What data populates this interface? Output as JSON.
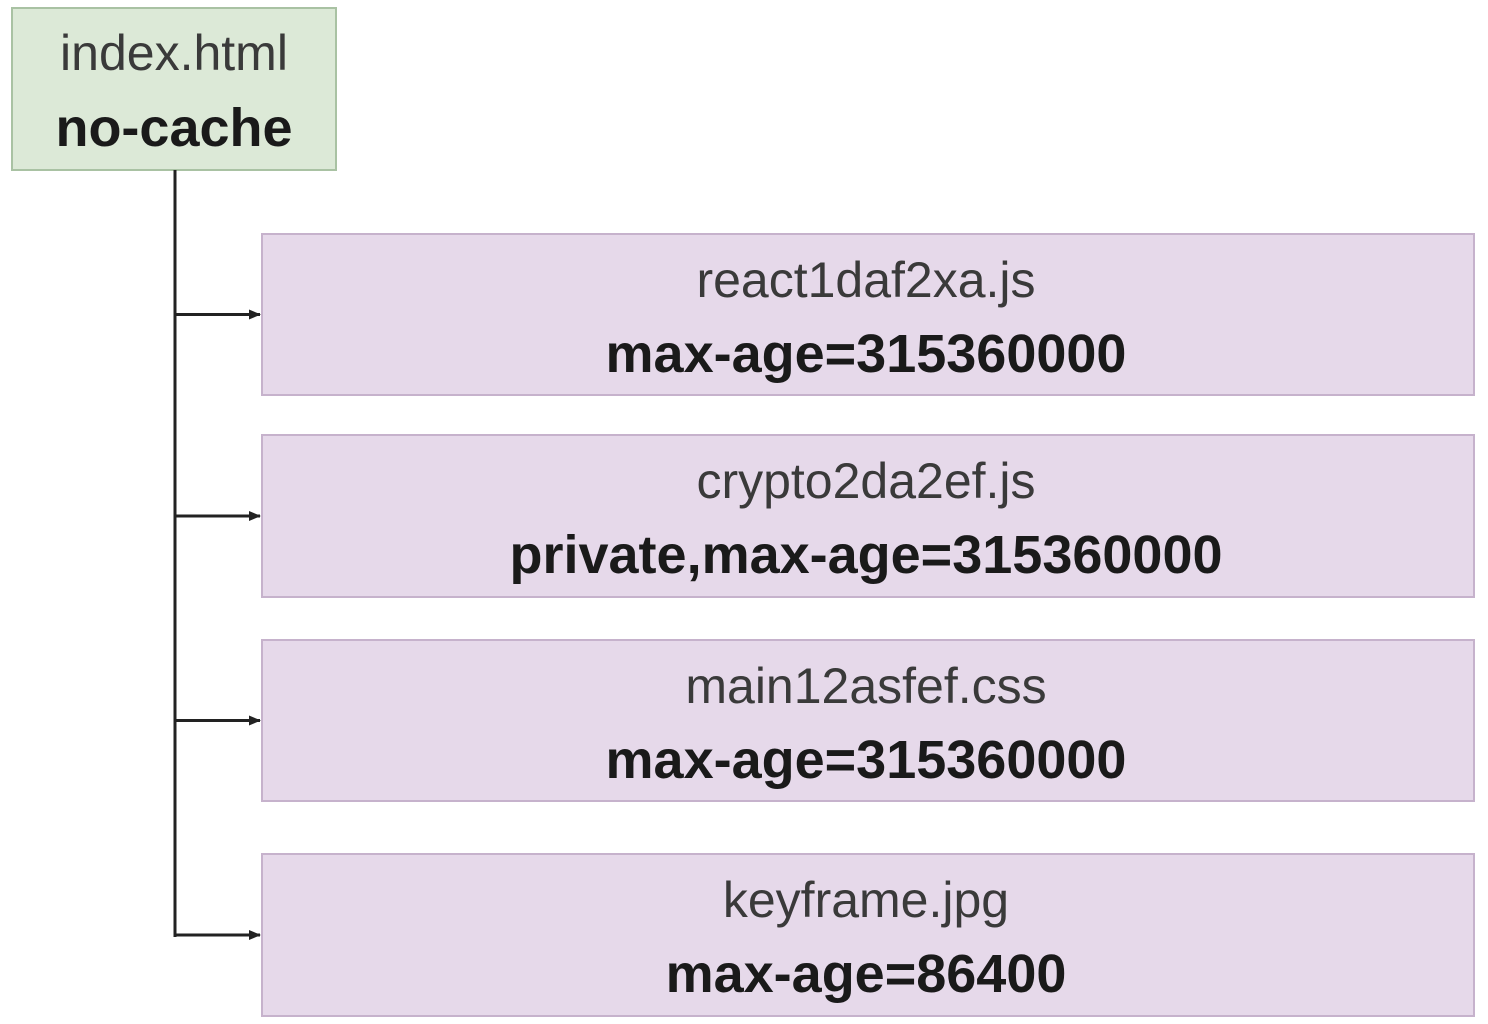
{
  "nodes": [
    {
      "label": "index.html",
      "cache": "no-cache"
    },
    {
      "label": "react1daf2xa.js",
      "cache": "max-age=315360000"
    },
    {
      "label": "crypto2da2ef.js",
      "cache": "private,max-age=315360000"
    },
    {
      "label": "main12asfef.css",
      "cache": "max-age=315360000"
    },
    {
      "label": "keyframe.jpg",
      "cache": "max-age=86400"
    }
  ]
}
